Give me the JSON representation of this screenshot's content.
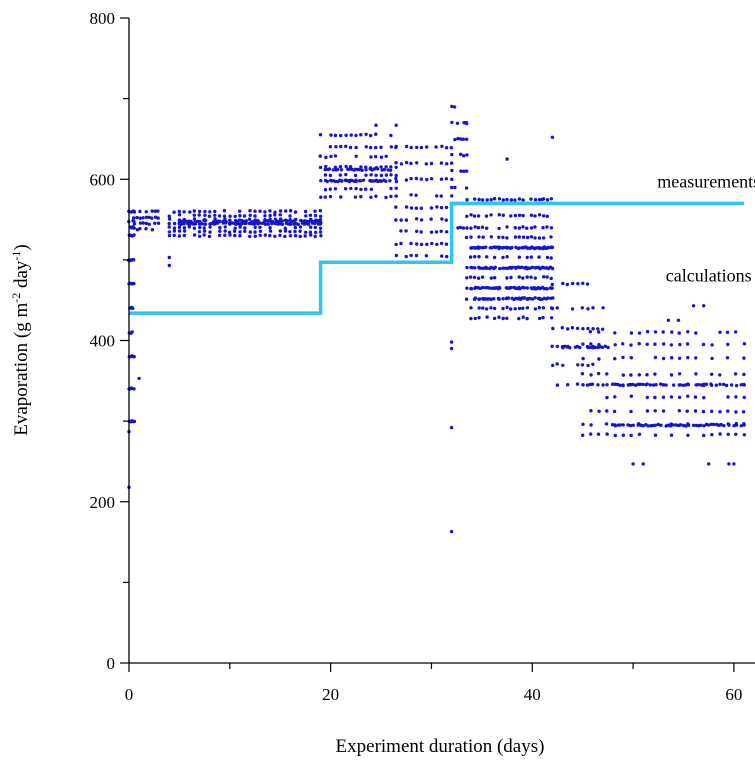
{
  "chart_data": {
    "type": "scatter",
    "title": "",
    "xlabel": "Experiment duration (days)",
    "ylabel_main": "Evaporation (g m",
    "ylabel_sup1": "-2",
    "ylabel_mid": " day",
    "ylabel_sup2": "-1",
    "ylabel_end": ")",
    "xlim": [
      0,
      61
    ],
    "ylim": [
      0,
      800
    ],
    "x_ticks": [
      0,
      20,
      40,
      60
    ],
    "y_ticks": [
      0,
      200,
      400,
      600,
      800
    ],
    "x_minor_step": 10,
    "y_minor_step": 100,
    "grid": false,
    "annotations": [
      {
        "text": "measurements",
        "x": 57.5,
        "y": 590
      },
      {
        "text": "calculations",
        "x": 57.5,
        "y": 473
      }
    ],
    "series": [
      {
        "style": "step-line",
        "color": "#33c3f0",
        "x": [
          0,
          19,
          19,
          32,
          32,
          61
        ],
        "y": [
          434,
          434,
          497,
          497,
          570,
          570
        ]
      },
      {
        "style": "points",
        "color": "#1515cc",
        "segments": [
          {
            "x0": 0.0,
            "x1": 0.5,
            "levels": [
              560,
              548,
              540,
              530,
              500,
              470,
              440,
              410,
              380,
              340,
              300
            ],
            "step": 0.1
          },
          {
            "x0": 0.5,
            "x1": 3.0,
            "levels": [
              560,
              552,
              545,
              538
            ],
            "step": 0.3
          },
          {
            "x0": 4.0,
            "x1": 19.0,
            "levels": [
              560,
              555,
              550,
              545,
              540,
              535,
              530
            ],
            "step": 0.5
          },
          {
            "x0": 19.0,
            "x1": 26.5,
            "levels": [
              655,
              640,
              628,
              615,
              605,
              598,
              588,
              578
            ],
            "step": 0.5
          },
          {
            "x0": 26.5,
            "x1": 32.0,
            "levels": [
              640,
              620,
              600,
              580,
              565,
              550,
              535,
              520,
              505
            ],
            "step": 0.5
          },
          {
            "x0": 32.0,
            "x1": 33.5,
            "levels": [
              690,
              670,
              650,
              630,
              610,
              590,
              570,
              540
            ],
            "step": 0.3
          },
          {
            "x0": 33.5,
            "x1": 42.0,
            "levels": [
              575,
              555,
              540,
              528,
              515,
              503,
              490,
              478,
              465,
              452,
              440,
              428
            ],
            "step": 0.4
          },
          {
            "x0": 42.0,
            "x1": 47.0,
            "levels": [
              470,
              440,
              415,
              392,
              370,
              345
            ],
            "step": 0.5
          },
          {
            "x0": 45.0,
            "x1": 61.0,
            "levels": [
              410,
              395,
              378,
              358,
              345,
              330,
              312,
              296,
              283
            ],
            "step": 0.8
          },
          {
            "x0": 48.0,
            "x1": 61.0,
            "levels": [
              295,
              345
            ],
            "step": 0.25
          },
          {
            "x0": 43.0,
            "x1": 48.0,
            "levels": [
              392
            ],
            "step": 0.25
          },
          {
            "x0": 34.0,
            "x1": 42.0,
            "levels": [
              515,
              490,
              465,
              452
            ],
            "step": 0.2
          },
          {
            "x0": 19.5,
            "x1": 26.0,
            "levels": [
              598,
              612
            ],
            "step": 0.2
          },
          {
            "x0": 5.0,
            "x1": 19.0,
            "levels": [
              545,
              548
            ],
            "step": 0.2
          }
        ],
        "outliers": [
          {
            "x": 32.0,
            "y": 163
          },
          {
            "x": 32.0,
            "y": 292
          },
          {
            "x": 32.0,
            "y": 390
          },
          {
            "x": 32.0,
            "y": 398
          },
          {
            "x": 0.0,
            "y": 218
          },
          {
            "x": 0.0,
            "y": 287
          },
          {
            "x": 1.0,
            "y": 353
          },
          {
            "x": 4.0,
            "y": 493
          },
          {
            "x": 4.0,
            "y": 503
          },
          {
            "x": 42.0,
            "y": 652
          },
          {
            "x": 33.5,
            "y": 669
          },
          {
            "x": 24.5,
            "y": 667
          },
          {
            "x": 26.5,
            "y": 667
          },
          {
            "x": 50.0,
            "y": 247
          },
          {
            "x": 51.0,
            "y": 247
          },
          {
            "x": 57.5,
            "y": 247
          },
          {
            "x": 59.5,
            "y": 247
          },
          {
            "x": 60.0,
            "y": 247
          },
          {
            "x": 56.0,
            "y": 443
          },
          {
            "x": 57.0,
            "y": 443
          },
          {
            "x": 54.5,
            "y": 425
          },
          {
            "x": 53.5,
            "y": 425
          },
          {
            "x": 41.0,
            "y": 575
          },
          {
            "x": 40.5,
            "y": 570
          },
          {
            "x": 37.5,
            "y": 625
          }
        ]
      }
    ]
  }
}
